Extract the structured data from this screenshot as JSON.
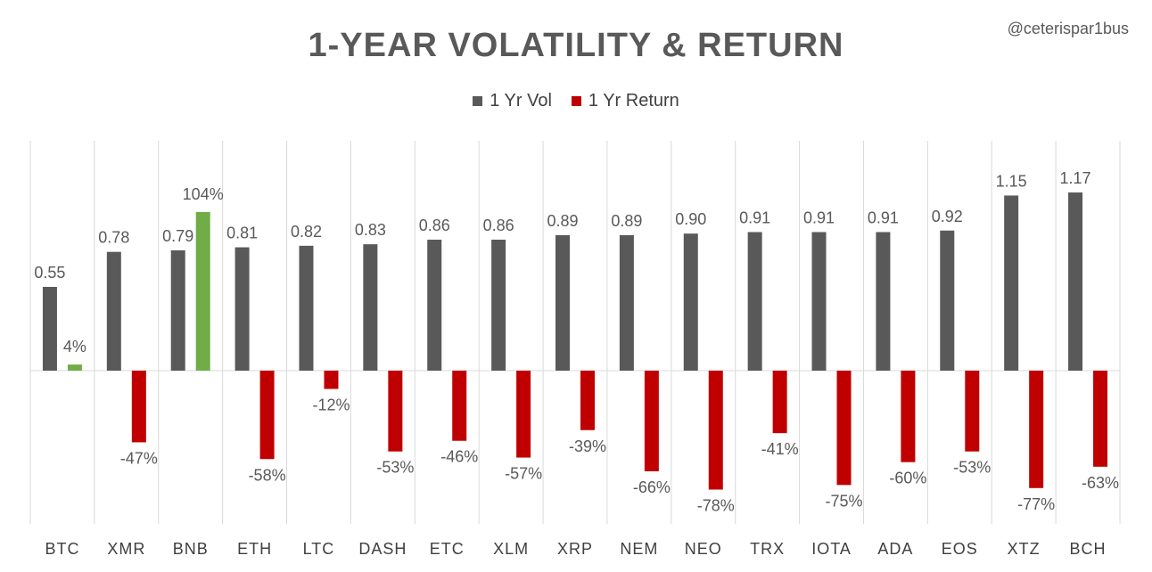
{
  "attribution": "@ceterispar1bus",
  "chart_data": {
    "type": "bar",
    "title": "1-YEAR VOLATILITY & RETURN",
    "legend_position": "top",
    "categories": [
      "BTC",
      "XMR",
      "BNB",
      "ETH",
      "LTC",
      "DASH",
      "ETC",
      "XLM",
      "XRP",
      "NEM",
      "NEO",
      "TRX",
      "IOTA",
      "ADA",
      "EOS",
      "XTZ",
      "BCH"
    ],
    "series": [
      {
        "name": "1 Yr Vol",
        "color": "#595959",
        "values": [
          0.55,
          0.78,
          0.79,
          0.81,
          0.82,
          0.83,
          0.86,
          0.86,
          0.89,
          0.89,
          0.9,
          0.91,
          0.91,
          0.91,
          0.92,
          1.15,
          1.17
        ],
        "labels": [
          "0.55",
          "0.78",
          "0.79",
          "0.81",
          "0.82",
          "0.83",
          "0.86",
          "0.86",
          "0.89",
          "0.89",
          "0.90",
          "0.91",
          "0.91",
          "0.91",
          "0.92",
          "1.15",
          "1.17"
        ]
      },
      {
        "name": "1 Yr Return",
        "color": "#C00000",
        "positive_color": "#70AD47",
        "values": [
          0.04,
          -0.47,
          1.04,
          -0.58,
          -0.12,
          -0.53,
          -0.46,
          -0.57,
          -0.39,
          -0.66,
          -0.78,
          -0.41,
          -0.75,
          -0.6,
          -0.53,
          -0.77,
          -0.63
        ],
        "labels": [
          "4%",
          "-47%",
          "104%",
          "-58%",
          "-12%",
          "-53%",
          "-46%",
          "-57%",
          "-39%",
          "-66%",
          "-78%",
          "-41%",
          "-75%",
          "-60%",
          "-53%",
          "-77%",
          "-63%"
        ]
      }
    ],
    "grid": false,
    "category_separators": true
  }
}
